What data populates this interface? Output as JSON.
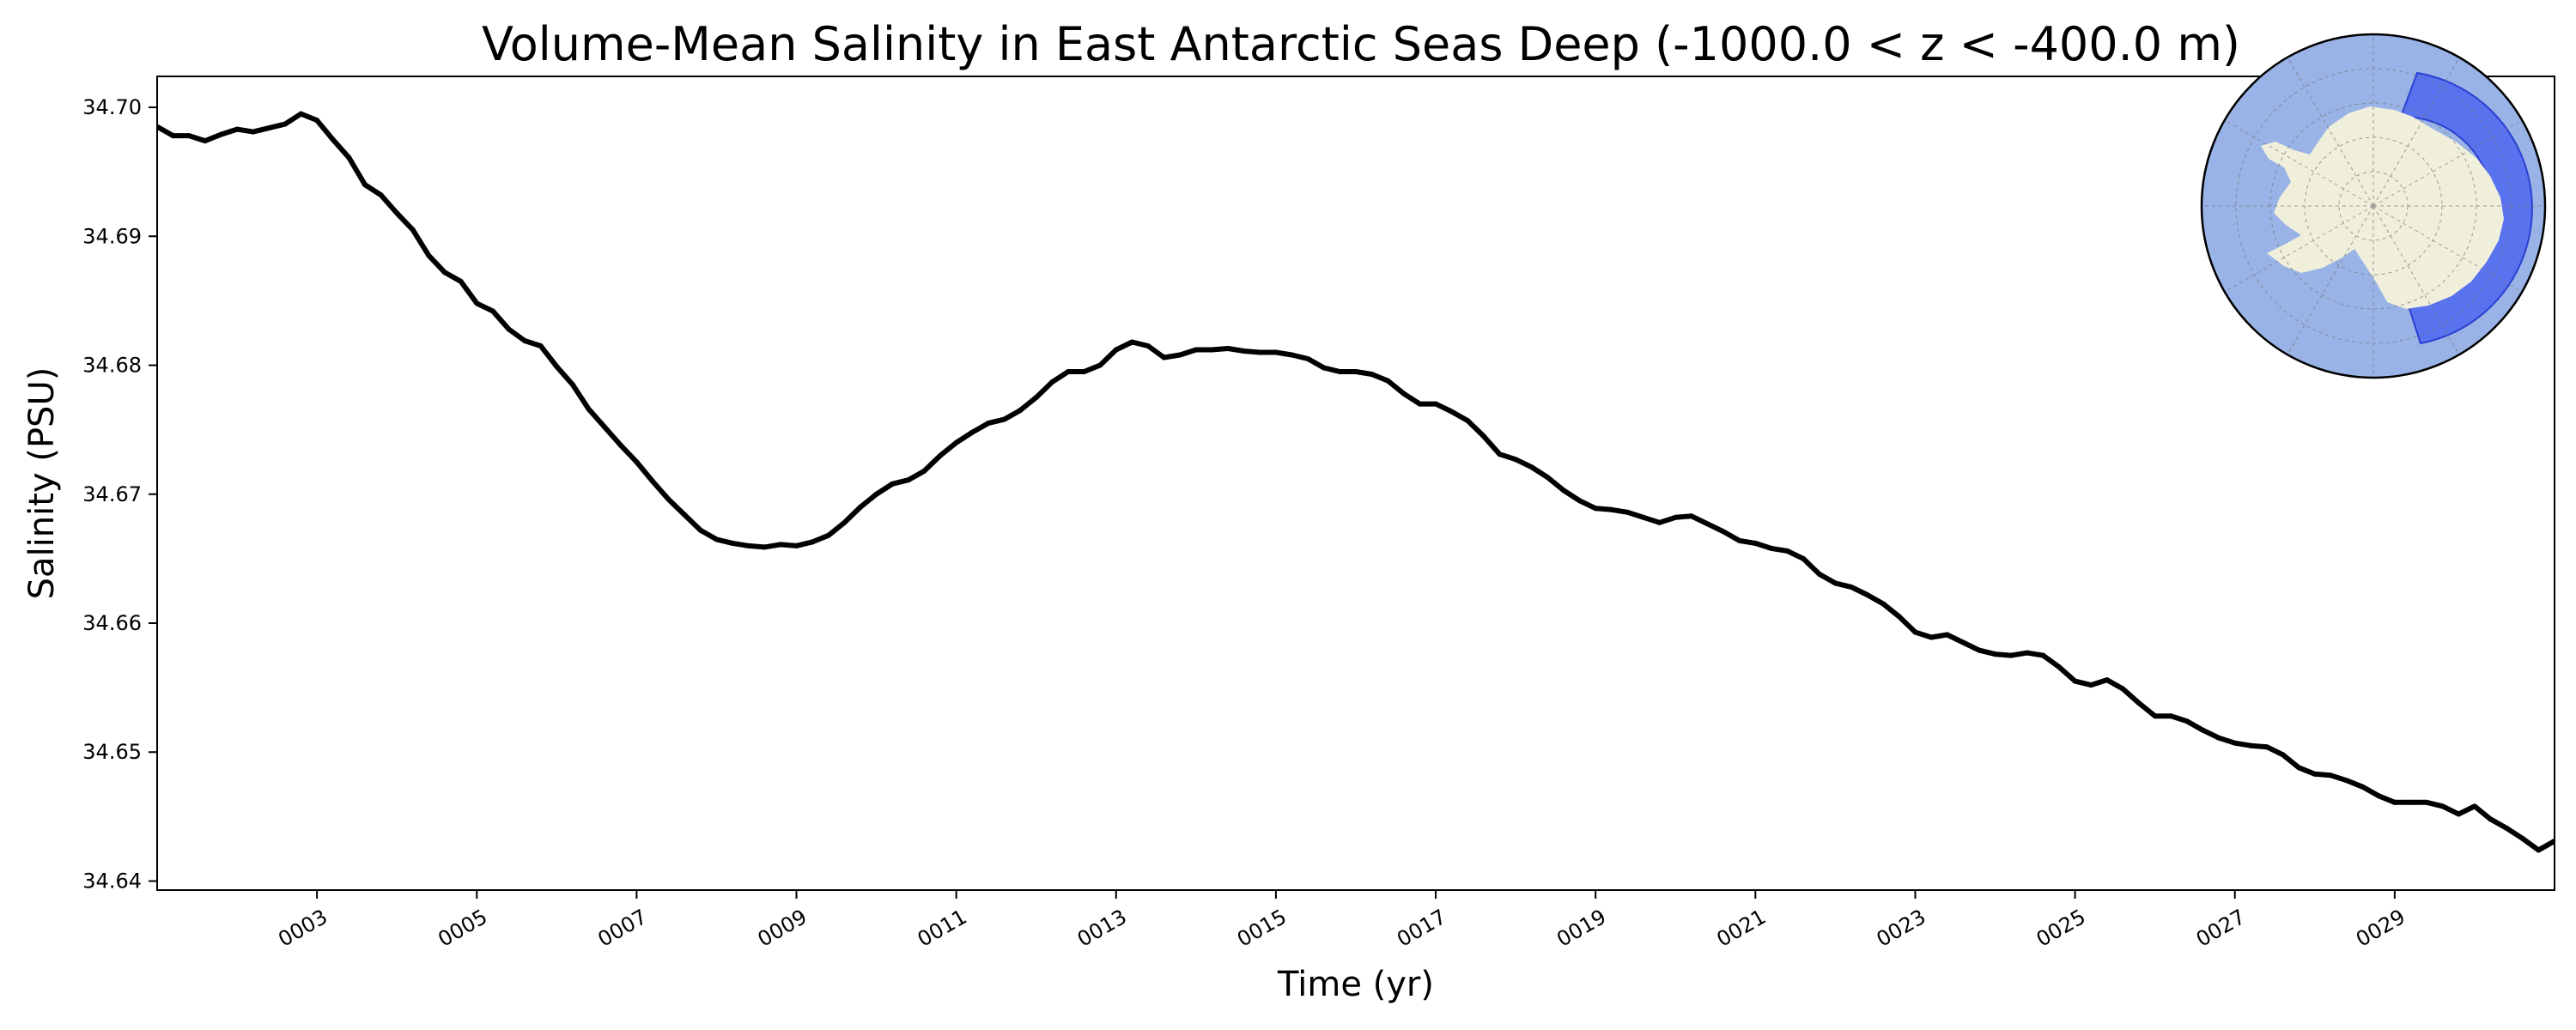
{
  "chart_data": {
    "type": "line",
    "title": "Volume-Mean Salinity in East Antarctic Seas Deep (-1000.0 < z < -400.0 m)",
    "xlabel": "Time (yr)",
    "ylabel": "Salinity (PSU)",
    "xlim": [
      1.0,
      31.0
    ],
    "ylim": [
      34.6393,
      34.7024
    ],
    "xticks": [
      3,
      5,
      7,
      9,
      11,
      13,
      15,
      17,
      19,
      21,
      23,
      25,
      27,
      29
    ],
    "xtick_labels": [
      "0003",
      "0005",
      "0007",
      "0009",
      "0011",
      "0013",
      "0015",
      "0017",
      "0019",
      "0021",
      "0023",
      "0025",
      "0027",
      "0029"
    ],
    "yticks": [
      34.64,
      34.65,
      34.66,
      34.67,
      34.68,
      34.69,
      34.7
    ],
    "ytick_labels": [
      "34.64",
      "34.65",
      "34.66",
      "34.67",
      "34.68",
      "34.69",
      "34.70"
    ],
    "grid": false,
    "series": [
      {
        "color": "#000000",
        "x": [
          1.0,
          1.2,
          1.4,
          1.6,
          1.8,
          2.0,
          2.2,
          2.4,
          2.6,
          2.8,
          3.0,
          3.2,
          3.4,
          3.6,
          3.8,
          4.0,
          4.2,
          4.4,
          4.6,
          4.8,
          5.0,
          5.2,
          5.4,
          5.6,
          5.8,
          6.0,
          6.2,
          6.4,
          6.6,
          6.8,
          7.0,
          7.2,
          7.4,
          7.6,
          7.8,
          8.0,
          8.2,
          8.4,
          8.6,
          8.8,
          9.0,
          9.2,
          9.4,
          9.6,
          9.8,
          10.0,
          10.2,
          10.4,
          10.6,
          10.8,
          11.0,
          11.2,
          11.4,
          11.6,
          11.8,
          12.0,
          12.2,
          12.4,
          12.6,
          12.8,
          13.0,
          13.2,
          13.4,
          13.6,
          13.8,
          14.0,
          14.2,
          14.4,
          14.6,
          14.8,
          15.0,
          15.2,
          15.4,
          15.6,
          15.8,
          16.0,
          16.2,
          16.4,
          16.6,
          16.8,
          17.0,
          17.2,
          17.4,
          17.6,
          17.8,
          18.0,
          18.2,
          18.4,
          18.6,
          18.8,
          19.0,
          19.2,
          19.4,
          19.6,
          19.8,
          20.0,
          20.2,
          20.4,
          20.6,
          20.8,
          21.0,
          21.2,
          21.4,
          21.6,
          21.8,
          22.0,
          22.2,
          22.4,
          22.6,
          22.8,
          23.0,
          23.2,
          23.4,
          23.6,
          23.8,
          24.0,
          24.2,
          24.4,
          24.6,
          24.8,
          25.0,
          25.2,
          25.4,
          25.6,
          25.8,
          26.0,
          26.2,
          26.4,
          26.6,
          26.8,
          27.0,
          27.2,
          27.4,
          27.6,
          27.8,
          28.0,
          28.2,
          28.4,
          28.6,
          28.8,
          29.0,
          29.2,
          29.4,
          29.6,
          29.8,
          30.0,
          30.2,
          30.4,
          30.6,
          30.8,
          31.0
        ],
        "y": [
          34.6985,
          34.6978,
          34.6978,
          34.6974,
          34.6979,
          34.6983,
          34.6981,
          34.6984,
          34.6987,
          34.6995,
          34.699,
          34.6975,
          34.6961,
          34.694,
          34.6932,
          34.6918,
          34.6905,
          34.6885,
          34.6872,
          34.6865,
          34.6848,
          34.6842,
          34.6828,
          34.6819,
          34.6815,
          34.6799,
          34.6785,
          34.6766,
          34.6752,
          34.6738,
          34.6725,
          34.671,
          34.6696,
          34.6684,
          34.6672,
          34.6665,
          34.6662,
          34.666,
          34.6659,
          34.6661,
          34.666,
          34.6663,
          34.6668,
          34.6678,
          34.669,
          34.67,
          34.6708,
          34.6711,
          34.6718,
          34.673,
          34.674,
          34.6748,
          34.6755,
          34.6758,
          34.6765,
          34.6775,
          34.6787,
          34.6795,
          34.6795,
          34.68,
          34.6812,
          34.6818,
          34.6815,
          34.6806,
          34.6808,
          34.6812,
          34.6812,
          34.6813,
          34.6811,
          34.681,
          34.681,
          34.6808,
          34.6805,
          34.6798,
          34.6795,
          34.6795,
          34.6793,
          34.6788,
          34.6778,
          34.677,
          34.677,
          34.6764,
          34.6757,
          34.6745,
          34.6731,
          34.6727,
          34.6721,
          34.6713,
          34.6703,
          34.6695,
          34.6689,
          34.6688,
          34.6686,
          34.6682,
          34.6678,
          34.6682,
          34.6683,
          34.6677,
          34.6671,
          34.6664,
          34.6662,
          34.6658,
          34.6656,
          34.665,
          34.6638,
          34.6631,
          34.6628,
          34.6622,
          34.6615,
          34.6605,
          34.6593,
          34.6589,
          34.6591,
          34.6585,
          34.6579,
          34.6576,
          34.6575,
          34.6577,
          34.6575,
          34.6566,
          34.6555,
          34.6552,
          34.6556,
          34.6549,
          34.6538,
          34.6528,
          34.6528,
          34.6524,
          34.6517,
          34.6511,
          34.6507,
          34.6505,
          34.6504,
          34.6498,
          34.6488,
          34.6483,
          34.6482,
          34.6478,
          34.6473,
          34.6466,
          34.6461,
          34.6461,
          34.6461,
          34.6458,
          34.6452,
          34.6458,
          34.6448,
          34.6441,
          34.6433,
          34.6424,
          34.6431
        ]
      }
    ]
  },
  "inset_map": {
    "ocean_color": "#99b3e6",
    "land_color": "#efefdb",
    "region_color": "#4d66ee",
    "outline_color": "#000000"
  }
}
